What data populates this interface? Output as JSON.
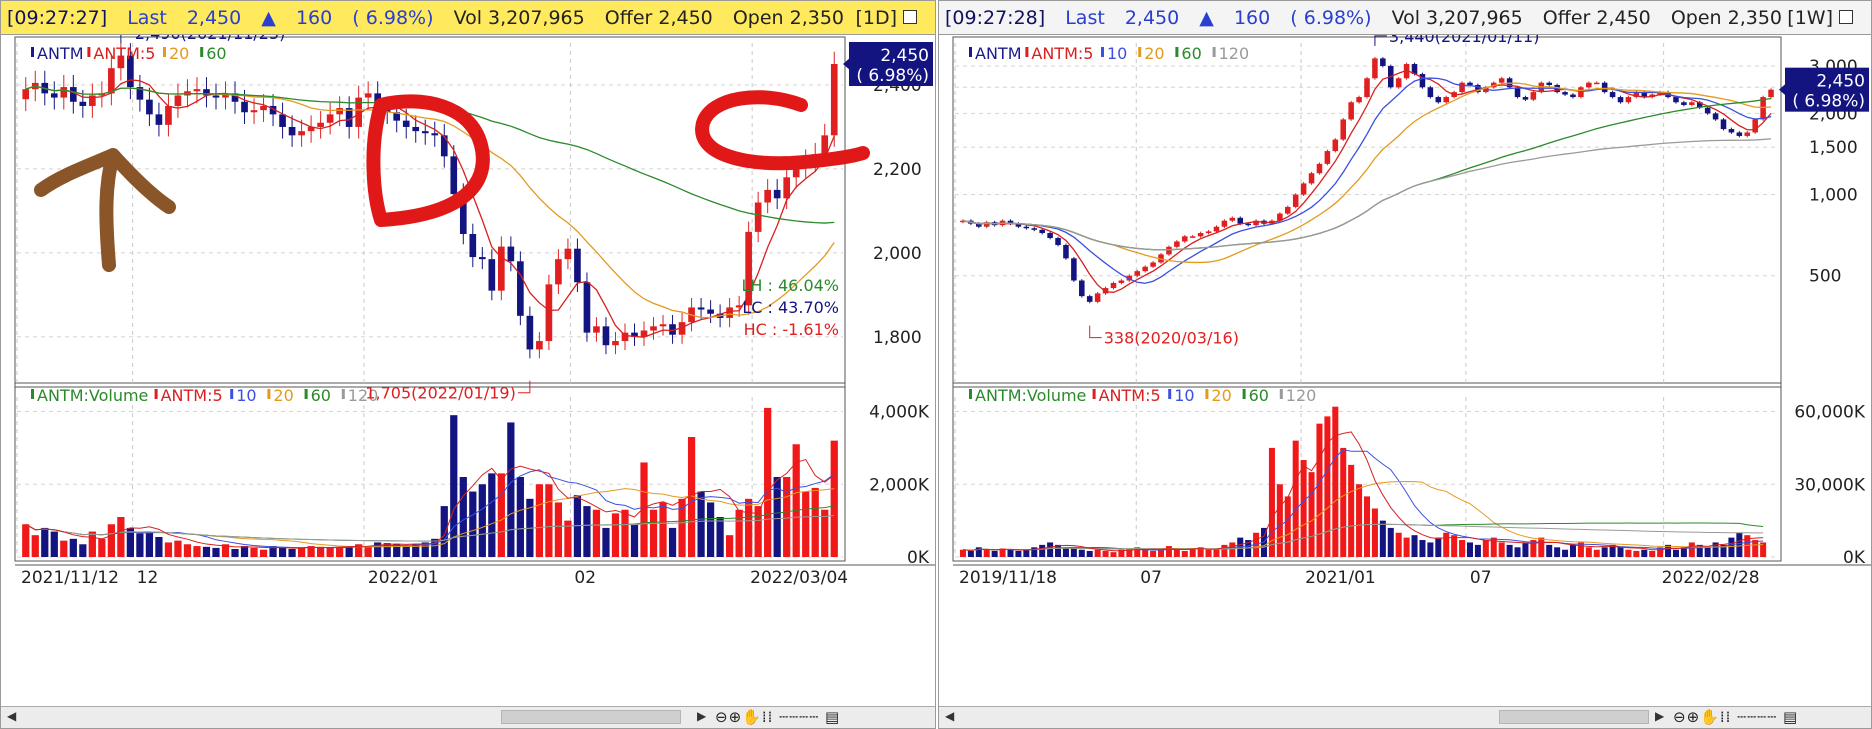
{
  "left_panel": {
    "infobar": {
      "time": "[09:27:27]",
      "last_label": "Last",
      "last_value": "2,450",
      "change_arrow": "▲",
      "change": "160",
      "change_pct": "( 6.98%)",
      "vol": "Vol 3,207,965",
      "offer": "Offer 2,450",
      "open": "Open 2,350",
      "period": "1D"
    },
    "price_legend": [
      {
        "text": "ANTM",
        "color": "#1a1a8c"
      },
      {
        "text": "ANTM:5",
        "color": "#d82020"
      },
      {
        "text": "20",
        "color": "#e59a1e"
      },
      {
        "text": "60",
        "color": "#2a8a2a"
      }
    ],
    "volume_legend": [
      {
        "text": "ANTM:Volume",
        "color": "#2a8a2a"
      },
      {
        "text": "ANTM:5",
        "color": "#d82020"
      },
      {
        "text": "10",
        "color": "#3b4fe0"
      },
      {
        "text": "20",
        "color": "#e59a1e"
      },
      {
        "text": "60",
        "color": "#2a8a2a"
      },
      {
        "text": "120",
        "color": "#9a9a9a"
      }
    ],
    "annotations": {
      "high": "2,490(2021/11/25)",
      "low": "1,705(2022/01/19)",
      "current_price": "2,450",
      "current_pct": "( 6.98%)",
      "lh": "LH :  46.04%",
      "lc": "LC :  43.70%",
      "hc": "HC :  -1.61%"
    },
    "x_labels": [
      "2021/11/12",
      "12",
      "2022/01",
      "02",
      "2022/03/04"
    ]
  },
  "right_panel": {
    "infobar": {
      "time": "[09:27:28]",
      "last_label": "Last",
      "last_value": "2,450",
      "change_arrow": "▲",
      "change": "160",
      "change_pct": "( 6.98%)",
      "vol": "Vol 3,207,965",
      "offer": "Offer 2,450",
      "open": "Open 2,350",
      "period": "1W"
    },
    "price_legend": [
      {
        "text": "ANTM",
        "color": "#1a1a8c"
      },
      {
        "text": "ANTM:5",
        "color": "#d82020"
      },
      {
        "text": "10",
        "color": "#3b4fe0"
      },
      {
        "text": "20",
        "color": "#e59a1e"
      },
      {
        "text": "60",
        "color": "#2a8a2a"
      },
      {
        "text": "120",
        "color": "#9a9a9a"
      }
    ],
    "volume_legend": [
      {
        "text": "ANTM:Volume",
        "color": "#2a8a2a"
      },
      {
        "text": "ANTM:5",
        "color": "#d82020"
      },
      {
        "text": "10",
        "color": "#3b4fe0"
      },
      {
        "text": "20",
        "color": "#e59a1e"
      },
      {
        "text": "60",
        "color": "#2a8a2a"
      },
      {
        "text": "120",
        "color": "#9a9a9a"
      }
    ],
    "annotations": {
      "high": "3,440(2021/01/11)",
      "low": "338(2020/03/16)",
      "current_price": "2,450",
      "current_pct": "( 6.98%)"
    },
    "x_labels": [
      "2019/11/18",
      "07",
      "2021/01",
      "07",
      "2022/02/28"
    ]
  },
  "chart_data": [
    {
      "type": "candlestick",
      "panel": "left-price",
      "period": "1D",
      "xlabels": [
        "2021/11/12",
        "12",
        "2022/01",
        "02",
        "2022/03/04"
      ],
      "y_ticks": [
        1800,
        2000,
        2200,
        2400
      ],
      "ylim": [
        1690,
        2500
      ],
      "close": [
        2390,
        2405,
        2380,
        2370,
        2395,
        2360,
        2350,
        2375,
        2380,
        2440,
        2470,
        2395,
        2365,
        2330,
        2305,
        2350,
        2375,
        2385,
        2390,
        2375,
        2370,
        2380,
        2360,
        2335,
        2340,
        2350,
        2330,
        2300,
        2280,
        2290,
        2300,
        2310,
        2330,
        2345,
        2300,
        2370,
        2380,
        2340,
        2335,
        2315,
        2300,
        2290,
        2285,
        2280,
        2230,
        2140,
        2045,
        1990,
        1985,
        1910,
        2015,
        1980,
        1850,
        1770,
        1790,
        1925,
        1985,
        2010,
        1930,
        1810,
        1825,
        1780,
        1790,
        1810,
        1800,
        1815,
        1825,
        1830,
        1805,
        1835,
        1870,
        1865,
        1855,
        1845,
        1870,
        1875,
        2050,
        2120,
        2150,
        2130,
        2180,
        2205,
        2220,
        2235,
        2280,
        2450
      ],
      "series": [
        {
          "name": "ANTM:5",
          "color": "#d82020"
        },
        {
          "name": "20",
          "color": "#e59a1e"
        },
        {
          "name": "60",
          "color": "#2a8a2a"
        }
      ],
      "high_marker": {
        "value": 2490,
        "date": "2021/11/25"
      },
      "low_marker": {
        "value": 1705,
        "date": "2022/01/19"
      },
      "last": 2450
    },
    {
      "type": "bar",
      "panel": "left-volume",
      "y_ticks": [
        "0K",
        "2,000K",
        "4,000K"
      ],
      "ylim": [
        0,
        4400
      ],
      "values": [
        900,
        600,
        800,
        700,
        450,
        500,
        350,
        700,
        500,
        900,
        1100,
        800,
        650,
        700,
        550,
        400,
        450,
        350,
        300,
        280,
        250,
        350,
        220,
        300,
        250,
        200,
        300,
        250,
        220,
        250,
        300,
        280,
        260,
        270,
        300,
        350,
        300,
        400,
        380,
        350,
        300,
        350,
        400,
        500,
        1400,
        3900,
        2200,
        1800,
        2000,
        2300,
        2300,
        3700,
        2200,
        1600,
        2000,
        2000,
        1500,
        1000,
        1700,
        1400,
        1300,
        800,
        1200,
        1300,
        900,
        2600,
        1300,
        1500,
        800,
        1600,
        3300,
        1800,
        1500,
        1100,
        600,
        1300,
        1600,
        1400,
        4100,
        2200,
        2200,
        3100,
        1800,
        1900,
        1300,
        3200
      ]
    },
    {
      "type": "candlestick",
      "panel": "right-price",
      "period": "1W",
      "xlabels": [
        "2019/11/18",
        "07",
        "2021/01",
        "07",
        "2022/02/28"
      ],
      "y_ticks": [
        500,
        1000,
        1500,
        2000,
        2500,
        3000
      ],
      "ylim": [
        200,
        3650
      ],
      "close": [
        800,
        780,
        760,
        790,
        770,
        800,
        780,
        760,
        750,
        740,
        720,
        690,
        650,
        580,
        480,
        420,
        400,
        430,
        450,
        470,
        480,
        500,
        520,
        540,
        560,
        600,
        640,
        670,
        700,
        700,
        720,
        730,
        760,
        800,
        820,
        780,
        770,
        800,
        780,
        800,
        850,
        900,
        1000,
        1100,
        1200,
        1300,
        1450,
        1600,
        1900,
        2200,
        2300,
        2700,
        3200,
        3000,
        2500,
        2700,
        3050,
        2800,
        2500,
        2300,
        2200,
        2300,
        2400,
        2600,
        2550,
        2400,
        2500,
        2600,
        2700,
        2500,
        2300,
        2250,
        2400,
        2600,
        2550,
        2400,
        2350,
        2300,
        2500,
        2600,
        2600,
        2400,
        2300,
        2200,
        2300,
        2400,
        2300,
        2350,
        2400,
        2300,
        2200,
        2150,
        2200,
        2100,
        2000,
        1900,
        1750,
        1700,
        1650,
        1700,
        1900,
        2300,
        2450
      ],
      "series": [
        {
          "name": "ANTM:5",
          "color": "#d82020"
        },
        {
          "name": "10",
          "color": "#3b4fe0"
        },
        {
          "name": "20",
          "color": "#e59a1e"
        },
        {
          "name": "60",
          "color": "#2a8a2a"
        },
        {
          "name": "120",
          "color": "#9a9a9a"
        }
      ],
      "high_marker": {
        "value": 3440,
        "date": "2021/01/11"
      },
      "low_marker": {
        "value": 338,
        "date": "2020/03/16"
      },
      "last": 2450
    },
    {
      "type": "bar",
      "panel": "right-volume",
      "y_ticks": [
        "0K",
        "30,000K",
        "60,000K"
      ],
      "ylim": [
        0,
        66000
      ],
      "values": [
        3000,
        2500,
        4000,
        3000,
        2500,
        3500,
        3000,
        2500,
        3000,
        4000,
        5000,
        6000,
        5000,
        4000,
        3500,
        3000,
        2500,
        3000,
        2500,
        2000,
        3000,
        3500,
        4000,
        3000,
        2500,
        3000,
        4500,
        3000,
        2500,
        3500,
        4000,
        3000,
        3500,
        5000,
        6000,
        8000,
        7000,
        10000,
        12000,
        45000,
        30000,
        25000,
        48000,
        40000,
        35000,
        55000,
        58000,
        62000,
        45000,
        38000,
        30000,
        25000,
        20000,
        15000,
        12000,
        10000,
        8000,
        9000,
        7000,
        6000,
        8000,
        10000,
        9000,
        7000,
        6000,
        5000,
        7000,
        8000,
        6000,
        5000,
        4000,
        6000,
        7000,
        8000,
        5000,
        4000,
        3000,
        5000,
        6000,
        4000,
        3000,
        4000,
        5000,
        4000,
        3000,
        2500,
        3000,
        2500,
        4000,
        5000,
        3000,
        4000,
        6000,
        5000,
        4000,
        6000,
        5000,
        8000,
        10000,
        9000,
        7000,
        6000
      ]
    }
  ]
}
